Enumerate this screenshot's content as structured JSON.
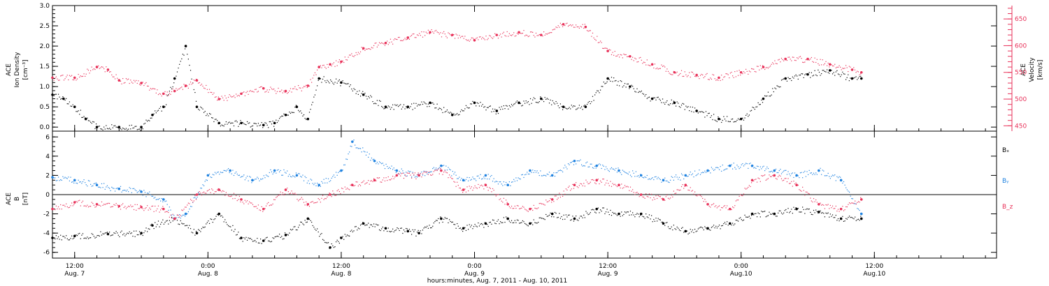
{
  "figure": {
    "xlabel": "hours:minutes, Aug.  7, 2011 - Aug. 10, 2011",
    "x_start": "2011-08-07T10:00",
    "x_end": "2011-08-10T23:00",
    "x_ticks": [
      {
        "t": "2011-08-07T12:00",
        "time": "12:00",
        "day": "Aug. 7"
      },
      {
        "t": "2011-08-08T00:00",
        "time": "0:00",
        "day": "Aug. 8"
      },
      {
        "t": "2011-08-08T12:00",
        "time": "12:00",
        "day": "Aug. 8"
      },
      {
        "t": "2011-08-09T00:00",
        "time": "0:00",
        "day": "Aug. 9"
      },
      {
        "t": "2011-08-09T12:00",
        "time": "12:00",
        "day": "Aug. 9"
      },
      {
        "t": "2011-08-10T00:00",
        "time": "0:00",
        "day": "Aug.10"
      },
      {
        "t": "2011-08-10T12:00",
        "time": "12:00",
        "day": "Aug.10"
      }
    ],
    "colors": {
      "black": "#000000",
      "pink": "#e8325a",
      "blue": "#1f82e0"
    }
  },
  "chart_data": [
    {
      "type": "scatter",
      "ylabel_left": [
        "ACE",
        "Ion Density",
        "[cm⁻³]"
      ],
      "ylabel_right": [
        "ACE",
        "Velocity",
        "[km/s]"
      ],
      "ylim": [
        -0.1,
        3.0
      ],
      "yticks": [
        "0.0",
        "0.5",
        "1.0",
        "1.5",
        "2.0",
        "2.5",
        "3.0"
      ],
      "ylim_right": [
        440,
        675
      ],
      "yticks_right": [
        "450",
        "500",
        "550",
        "600",
        "650"
      ],
      "series": [
        {
          "axis": "left",
          "color": "#000000",
          "x": [
            "2011-08-07T10:00",
            "2011-08-07T11:00",
            "2011-08-07T12:00",
            "2011-08-07T13:00",
            "2011-08-07T14:00",
            "2011-08-07T16:00",
            "2011-08-07T18:00",
            "2011-08-07T19:00",
            "2011-08-07T20:00",
            "2011-08-07T21:00",
            "2011-08-07T22:00",
            "2011-08-07T23:00",
            "2011-08-08T01:00",
            "2011-08-08T03:00",
            "2011-08-08T05:00",
            "2011-08-08T06:00",
            "2011-08-08T07:00",
            "2011-08-08T08:00",
            "2011-08-08T09:00",
            "2011-08-08T10:00",
            "2011-08-08T12:00",
            "2011-08-08T14:00",
            "2011-08-08T16:00",
            "2011-08-08T18:00",
            "2011-08-08T20:00",
            "2011-08-08T22:00",
            "2011-08-09T00:00",
            "2011-08-09T02:00",
            "2011-08-09T04:00",
            "2011-08-09T06:00",
            "2011-08-09T08:00",
            "2011-08-09T10:00",
            "2011-08-09T12:00",
            "2011-08-09T14:00",
            "2011-08-09T16:00",
            "2011-08-09T18:00",
            "2011-08-09T20:00",
            "2011-08-09T22:00",
            "2011-08-10T00:00",
            "2011-08-10T02:00",
            "2011-08-10T04:00",
            "2011-08-10T06:00",
            "2011-08-10T08:00",
            "2011-08-10T10:00",
            "2011-08-10T10:50"
          ],
          "y": [
            0.8,
            0.7,
            0.5,
            0.2,
            0.0,
            0.0,
            0.0,
            0.3,
            0.5,
            1.2,
            2.0,
            0.5,
            0.1,
            0.1,
            0.05,
            0.1,
            0.3,
            0.5,
            0.2,
            1.2,
            1.1,
            0.8,
            0.5,
            0.5,
            0.6,
            0.3,
            0.6,
            0.4,
            0.6,
            0.7,
            0.5,
            0.5,
            1.2,
            1.0,
            0.7,
            0.6,
            0.4,
            0.2,
            0.2,
            0.7,
            1.2,
            1.3,
            1.4,
            1.2,
            1.2
          ]
        },
        {
          "axis": "right",
          "color": "#e8325a",
          "x": [
            "2011-08-07T10:00",
            "2011-08-07T12:00",
            "2011-08-07T14:00",
            "2011-08-07T15:00",
            "2011-08-07T16:00",
            "2011-08-07T18:00",
            "2011-08-07T20:00",
            "2011-08-07T21:00",
            "2011-08-07T22:00",
            "2011-08-07T23:00",
            "2011-08-08T01:00",
            "2011-08-08T03:00",
            "2011-08-08T05:00",
            "2011-08-08T07:00",
            "2011-08-08T09:00",
            "2011-08-08T10:00",
            "2011-08-08T11:00",
            "2011-08-08T12:00",
            "2011-08-08T14:00",
            "2011-08-08T16:00",
            "2011-08-08T18:00",
            "2011-08-08T20:00",
            "2011-08-08T22:00",
            "2011-08-09T00:00",
            "2011-08-09T02:00",
            "2011-08-09T04:00",
            "2011-08-09T06:00",
            "2011-08-09T08:00",
            "2011-08-09T10:00",
            "2011-08-09T12:00",
            "2011-08-09T14:00",
            "2011-08-09T16:00",
            "2011-08-09T18:00",
            "2011-08-09T20:00",
            "2011-08-09T22:00",
            "2011-08-10T00:00",
            "2011-08-10T02:00",
            "2011-08-10T04:00",
            "2011-08-10T06:00",
            "2011-08-10T08:00",
            "2011-08-10T10:00",
            "2011-08-10T10:50"
          ],
          "y": [
            540,
            540,
            560,
            555,
            535,
            530,
            510,
            515,
            525,
            535,
            500,
            510,
            520,
            515,
            525,
            560,
            565,
            570,
            595,
            605,
            615,
            625,
            620,
            610,
            620,
            625,
            620,
            640,
            635,
            590,
            580,
            565,
            550,
            545,
            540,
            550,
            560,
            575,
            575,
            565,
            555,
            550
          ]
        }
      ]
    },
    {
      "type": "scatter",
      "ylabel_left": [
        "ACE",
        "B",
        "[nT]"
      ],
      "ylim": [
        -6.6,
        6.6
      ],
      "yticks": [
        "-6",
        "-4",
        "-2",
        "0",
        "2",
        "4",
        "6"
      ],
      "legend": [
        "Bₓ",
        "Bᵧ",
        "B_z"
      ],
      "series": [
        {
          "color": "#000000",
          "x": [
            "2011-08-07T10:00",
            "2011-08-07T12:00",
            "2011-08-07T15:00",
            "2011-08-07T18:00",
            "2011-08-07T19:00",
            "2011-08-07T21:00",
            "2011-08-07T23:00",
            "2011-08-08T01:00",
            "2011-08-08T03:00",
            "2011-08-08T05:00",
            "2011-08-08T07:00",
            "2011-08-08T09:00",
            "2011-08-08T11:00",
            "2011-08-08T12:00",
            "2011-08-08T14:00",
            "2011-08-08T16:00",
            "2011-08-08T18:00",
            "2011-08-08T19:00",
            "2011-08-08T21:00",
            "2011-08-08T23:00",
            "2011-08-09T01:00",
            "2011-08-09T03:00",
            "2011-08-09T05:00",
            "2011-08-09T07:00",
            "2011-08-09T09:00",
            "2011-08-09T11:00",
            "2011-08-09T13:00",
            "2011-08-09T15:00",
            "2011-08-09T17:00",
            "2011-08-09T19:00",
            "2011-08-09T21:00",
            "2011-08-09T23:00",
            "2011-08-10T01:00",
            "2011-08-10T03:00",
            "2011-08-10T05:00",
            "2011-08-10T07:00",
            "2011-08-10T09:00",
            "2011-08-10T10:50"
          ],
          "y": [
            -4.5,
            -4.3,
            -4.1,
            -4.0,
            -3.2,
            -2.5,
            -4.0,
            -2.0,
            -4.5,
            -4.8,
            -4.2,
            -2.5,
            -5.5,
            -4.5,
            -3.0,
            -3.5,
            -3.8,
            -4.0,
            -2.5,
            -3.5,
            -3.0,
            -2.5,
            -3.0,
            -2.0,
            -2.5,
            -1.5,
            -2.0,
            -2.0,
            -3.0,
            -3.8,
            -3.5,
            -3.0,
            -2.0,
            -2.0,
            -1.5,
            -1.8,
            -2.5,
            -2.5
          ]
        },
        {
          "color": "#1f82e0",
          "x": [
            "2011-08-07T10:00",
            "2011-08-07T12:00",
            "2011-08-07T14:00",
            "2011-08-07T16:00",
            "2011-08-07T18:00",
            "2011-08-07T20:00",
            "2011-08-07T21:00",
            "2011-08-07T22:00",
            "2011-08-08T00:00",
            "2011-08-08T02:00",
            "2011-08-08T04:00",
            "2011-08-08T06:00",
            "2011-08-08T08:00",
            "2011-08-08T10:00",
            "2011-08-08T12:00",
            "2011-08-08T13:00",
            "2011-08-08T15:00",
            "2011-08-08T17:00",
            "2011-08-08T19:00",
            "2011-08-08T21:00",
            "2011-08-08T23:00",
            "2011-08-09T01:00",
            "2011-08-09T03:00",
            "2011-08-09T05:00",
            "2011-08-09T07:00",
            "2011-08-09T09:00",
            "2011-08-09T11:00",
            "2011-08-09T13:00",
            "2011-08-09T15:00",
            "2011-08-09T17:00",
            "2011-08-09T19:00",
            "2011-08-09T21:00",
            "2011-08-09T23:00",
            "2011-08-10T01:00",
            "2011-08-10T03:00",
            "2011-08-10T05:00",
            "2011-08-10T07:00",
            "2011-08-10T09:00",
            "2011-08-10T10:50"
          ],
          "y": [
            1.8,
            1.5,
            1.0,
            0.6,
            0.3,
            -0.5,
            -2.5,
            -2.0,
            2.0,
            2.5,
            1.5,
            2.5,
            2.0,
            1.0,
            2.5,
            5.5,
            3.5,
            2.5,
            2.0,
            3.0,
            1.5,
            2.0,
            1.0,
            2.5,
            2.0,
            3.5,
            3.0,
            2.5,
            2.0,
            1.5,
            2.0,
            2.5,
            3.0,
            3.0,
            2.5,
            2.0,
            2.5,
            1.5,
            -2.0
          ]
        },
        {
          "color": "#e8325a",
          "x": [
            "2011-08-07T10:00",
            "2011-08-07T12:00",
            "2011-08-07T14:00",
            "2011-08-07T16:00",
            "2011-08-07T18:00",
            "2011-08-07T20:00",
            "2011-08-07T21:00",
            "2011-08-07T23:00",
            "2011-08-08T01:00",
            "2011-08-08T03:00",
            "2011-08-08T05:00",
            "2011-08-08T07:00",
            "2011-08-08T09:00",
            "2011-08-08T11:00",
            "2011-08-08T13:00",
            "2011-08-08T15:00",
            "2011-08-08T17:00",
            "2011-08-08T19:00",
            "2011-08-08T21:00",
            "2011-08-08T23:00",
            "2011-08-09T01:00",
            "2011-08-09T03:00",
            "2011-08-09T05:00",
            "2011-08-09T07:00",
            "2011-08-09T09:00",
            "2011-08-09T11:00",
            "2011-08-09T13:00",
            "2011-08-09T15:00",
            "2011-08-09T17:00",
            "2011-08-09T19:00",
            "2011-08-09T21:00",
            "2011-08-09T23:00",
            "2011-08-10T01:00",
            "2011-08-10T03:00",
            "2011-08-10T05:00",
            "2011-08-10T07:00",
            "2011-08-10T09:00",
            "2011-08-10T10:50"
          ],
          "y": [
            -1.5,
            -0.8,
            -1.0,
            -1.2,
            -1.3,
            -1.5,
            -2.5,
            0.0,
            0.5,
            -0.5,
            -1.5,
            0.5,
            -1.0,
            0.0,
            1.0,
            1.5,
            2.0,
            2.0,
            2.5,
            0.5,
            1.0,
            -1.0,
            -1.5,
            -0.5,
            1.0,
            1.5,
            1.0,
            0.0,
            -0.5,
            1.0,
            -1.0,
            -1.5,
            1.5,
            2.0,
            1.0,
            -1.0,
            -1.5,
            -0.5
          ]
        }
      ]
    }
  ]
}
